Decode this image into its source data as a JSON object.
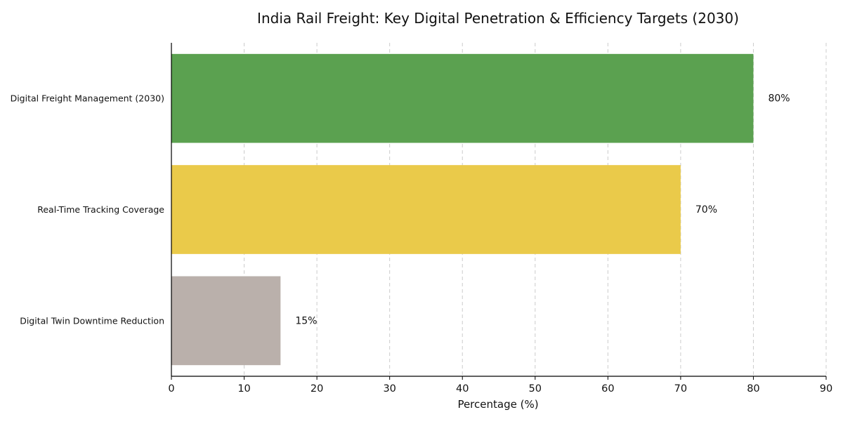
{
  "chart_data": {
    "type": "bar",
    "orientation": "horizontal",
    "title": "India Rail Freight: Key Digital Penetration & Efficiency Targets (2030)",
    "xlabel": "Percentage (%)",
    "ylabel": "",
    "xlim": [
      0,
      90
    ],
    "xticks": [
      0,
      10,
      20,
      30,
      40,
      50,
      60,
      70,
      80,
      90
    ],
    "grid": "vertical-dashed",
    "categories": [
      "Digital Freight Management (2030)",
      "Real-Time Tracking Coverage",
      "Digital Twin Downtime Reduction"
    ],
    "values": [
      80,
      70,
      15
    ],
    "value_labels": [
      "80%",
      "70%",
      "15%"
    ],
    "colors": [
      "#5ba150",
      "#eaca4a",
      "#bab0ab"
    ]
  }
}
